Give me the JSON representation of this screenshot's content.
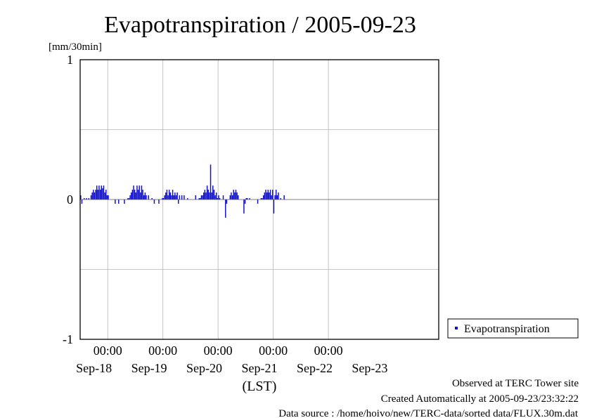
{
  "colors": {
    "series": "#1010c8",
    "grid": "#b4b4b4",
    "axis": "#000000"
  },
  "footer": {
    "observed": "Observed at TERC Tower site",
    "created": "Created Automatically at 2005-09-23/23:32:22",
    "source": "Data source : /home/hoivo/new/TERC-data/sorted  data/FLUX.30m.dat"
  },
  "chart_data": {
    "type": "bar",
    "title": "Evapotranspiration / 2005-09-23",
    "ylabel": "[mm/30min]",
    "xlabel": "(LST)",
    "ylim": [
      -1,
      1
    ],
    "y_ticks": [
      "1",
      "0",
      "-1"
    ],
    "x_range": [
      "2005-09-17 12:00",
      "2005-09-24 00:00"
    ],
    "x_tick_times": [
      "00:00",
      "00:00",
      "00:00",
      "00:00",
      "00:00"
    ],
    "x_date_labels": [
      "Sep-18",
      "Sep-19",
      "Sep-20",
      "Sep-21",
      "Sep-22",
      "Sep-23"
    ],
    "grid": true,
    "legend": {
      "position": "right",
      "entries": [
        "Evapotranspiration"
      ]
    },
    "series": [
      {
        "name": "Evapotranspiration",
        "interval": "30min",
        "start": "2005-09-17 12:00",
        "values": [
          0.03,
          -0.03,
          0,
          0.01,
          0,
          0.01,
          0,
          0.01,
          0,
          0.03,
          0.05,
          0.07,
          0.05,
          0.07,
          0.1,
          0.07,
          0.1,
          0.07,
          0.1,
          0.08,
          0.1,
          0.05,
          0.07,
          0.03,
          0.03,
          0,
          0,
          0,
          0,
          0,
          -0.03,
          0,
          0,
          -0.03,
          0,
          0,
          0,
          0,
          -0.03,
          0,
          0,
          0.01,
          0.01,
          0.03,
          0.05,
          0.07,
          0.1,
          0.07,
          0.05,
          0.1,
          0.07,
          0.1,
          0.05,
          0.1,
          0.07,
          0.03,
          0.05,
          0.03,
          0,
          0.03,
          0,
          0,
          0.01,
          0,
          -0.03,
          0,
          0,
          0,
          -0.03,
          0,
          0,
          0.01,
          0.01,
          0.03,
          0.05,
          0.07,
          0.03,
          0.07,
          0.05,
          0.03,
          0.07,
          0.03,
          0.05,
          0.03,
          0.05,
          -0.03,
          0.03,
          0,
          0.03,
          0,
          0.03,
          0,
          0,
          0.01,
          0,
          0,
          0,
          0,
          0,
          0,
          0.03,
          0,
          0,
          0.01,
          0.01,
          0.03,
          0.03,
          0.05,
          0.07,
          0.05,
          0.1,
          0.07,
          0.05,
          0.25,
          0.05,
          0.1,
          0.07,
          0.03,
          0.05,
          0.01,
          0.03,
          0.01,
          0,
          0,
          0.03,
          0,
          -0.13,
          -0.03,
          0,
          0,
          0.03,
          0.05,
          0.03,
          0.07,
          0.05,
          0.07,
          0.05,
          0.03,
          0,
          0,
          0,
          0,
          -0.1,
          -0.03,
          0.01,
          0.01,
          0,
          0.01,
          0,
          0,
          0,
          0,
          0,
          0,
          -0.03,
          0,
          0,
          0.01,
          0.01,
          0.03,
          0.05,
          0.07,
          0.05,
          0.07,
          0.05,
          0.07,
          0.03,
          0.07,
          -0.1,
          0.03,
          0.07,
          0.03,
          0.05,
          0,
          0.01,
          0,
          0,
          0.03,
          0,
          0
        ]
      }
    ]
  }
}
